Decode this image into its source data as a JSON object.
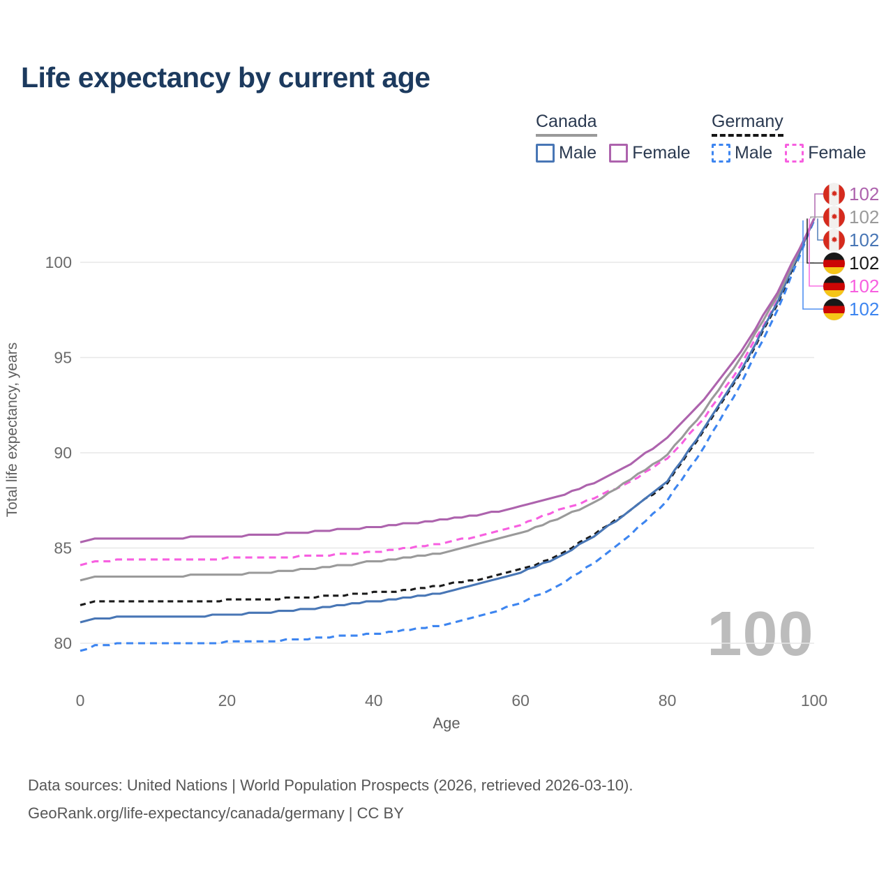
{
  "page": {
    "title": "Life expectancy by current age"
  },
  "legend": {
    "groups": [
      {
        "country": "Canada",
        "line_style": "solid",
        "line_color": "#9a9a9a",
        "items": [
          {
            "label": "Male",
            "color": "#4876b5"
          },
          {
            "label": "Female",
            "color": "#ad63ad"
          }
        ]
      },
      {
        "country": "Germany",
        "line_style": "dashed",
        "line_color": "#161616",
        "items": [
          {
            "label": "Male",
            "color": "#3d85f0"
          },
          {
            "label": "Female",
            "color": "#f75fe0"
          }
        ]
      }
    ]
  },
  "chart_data": {
    "type": "line",
    "title": "Life expectancy by current age",
    "xlabel": "Age",
    "ylabel": "Total life expectancy, years",
    "xlim": [
      0,
      100
    ],
    "ylim": [
      78.5,
      103
    ],
    "xticks": [
      0,
      20,
      40,
      60,
      80,
      100
    ],
    "yticks": [
      80,
      85,
      90,
      95,
      100
    ],
    "grid": "horizontal",
    "legend_position": "top-right",
    "watermark": "100",
    "x": [
      0,
      2,
      5,
      10,
      15,
      20,
      25,
      30,
      35,
      40,
      45,
      50,
      55,
      60,
      65,
      70,
      75,
      80,
      85,
      90,
      95,
      100
    ],
    "series": [
      {
        "name": "Canada Female",
        "country": "Canada",
        "sex": "Female",
        "flag": "ca",
        "color": "#ad63ad",
        "dash": "none",
        "end_label": "102",
        "values": [
          85.3,
          85.5,
          85.5,
          85.5,
          85.55,
          85.6,
          85.7,
          85.8,
          85.95,
          86.1,
          86.3,
          86.5,
          86.8,
          87.15,
          87.7,
          88.4,
          89.4,
          90.8,
          92.8,
          95.3,
          98.4,
          102.3
        ]
      },
      {
        "name": "Canada Both sexes",
        "country": "Canada",
        "sex": "Both",
        "flag": "ca",
        "color": "#9a9a9a",
        "dash": "none",
        "end_label": "102",
        "values": [
          83.3,
          83.45,
          83.5,
          83.5,
          83.55,
          83.6,
          83.7,
          83.85,
          84.05,
          84.3,
          84.5,
          84.8,
          85.25,
          85.8,
          86.5,
          87.4,
          88.6,
          89.9,
          92.2,
          95.0,
          98.2,
          102.3
        ]
      },
      {
        "name": "Canada Male",
        "country": "Canada",
        "sex": "Male",
        "flag": "ca",
        "color": "#4876b5",
        "dash": "none",
        "end_label": "102",
        "values": [
          81.1,
          81.3,
          81.35,
          81.4,
          81.4,
          81.5,
          81.6,
          81.75,
          81.95,
          82.2,
          82.4,
          82.7,
          83.15,
          83.7,
          84.5,
          85.6,
          87.0,
          88.5,
          91.3,
          94.3,
          97.9,
          102.3
        ]
      },
      {
        "name": "Germany Both sexes",
        "country": "Germany",
        "sex": "Both",
        "flag": "de",
        "color": "#1a1a1a",
        "dash": "8 6",
        "end_label": "102",
        "values": [
          82.0,
          82.15,
          82.2,
          82.2,
          82.2,
          82.25,
          82.3,
          82.4,
          82.5,
          82.65,
          82.8,
          83.1,
          83.4,
          83.85,
          84.6,
          85.7,
          87.0,
          88.4,
          91.2,
          94.2,
          97.8,
          102.3
        ]
      },
      {
        "name": "Germany Female",
        "country": "Germany",
        "sex": "Female",
        "flag": "de",
        "color": "#f75fe0",
        "dash": "10 7",
        "end_label": "102",
        "values": [
          84.1,
          84.3,
          84.35,
          84.4,
          84.4,
          84.45,
          84.5,
          84.55,
          84.65,
          84.8,
          85.0,
          85.3,
          85.7,
          86.2,
          86.95,
          87.6,
          88.5,
          89.7,
          91.8,
          94.6,
          98.0,
          102.3
        ]
      },
      {
        "name": "Germany Male",
        "country": "Germany",
        "sex": "Male",
        "flag": "de",
        "color": "#3d85f0",
        "dash": "10 7",
        "end_label": "102",
        "values": [
          79.6,
          79.85,
          79.95,
          80.0,
          80.0,
          80.05,
          80.1,
          80.2,
          80.35,
          80.5,
          80.7,
          81.0,
          81.5,
          82.1,
          83.0,
          84.2,
          85.7,
          87.5,
          90.3,
          93.6,
          97.5,
          102.2
        ]
      }
    ]
  },
  "footer": {
    "line1": "Data sources: United Nations | World Population Prospects (2026, retrieved 2026-03-10).",
    "line2": "GeoRank.org/life-expectancy/canada/germany | CC BY"
  }
}
